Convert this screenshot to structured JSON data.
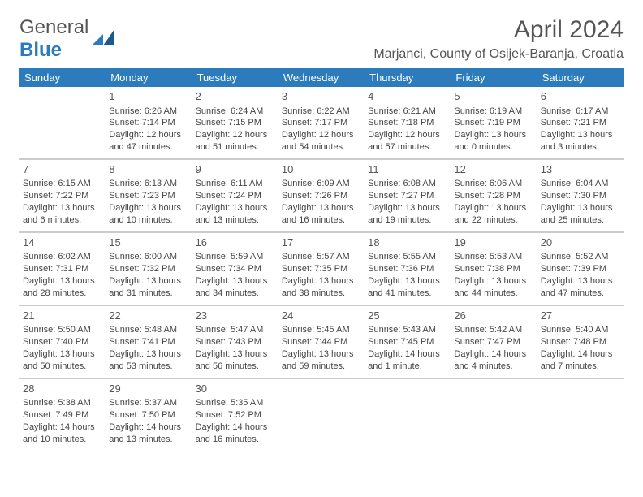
{
  "logo": {
    "text1": "General",
    "text2": "Blue"
  },
  "title": "April 2024",
  "location": "Marjanci, County of Osijek-Baranja, Croatia",
  "day_headers": [
    "Sunday",
    "Monday",
    "Tuesday",
    "Wednesday",
    "Thursday",
    "Friday",
    "Saturday"
  ],
  "header_bg": "#2b7bbd",
  "header_fg": "#ffffff",
  "border_color": "#cccccc",
  "weeks": [
    [
      null,
      {
        "n": "1",
        "sr": "Sunrise: 6:26 AM",
        "ss": "Sunset: 7:14 PM",
        "d1": "Daylight: 12 hours",
        "d2": "and 47 minutes."
      },
      {
        "n": "2",
        "sr": "Sunrise: 6:24 AM",
        "ss": "Sunset: 7:15 PM",
        "d1": "Daylight: 12 hours",
        "d2": "and 51 minutes."
      },
      {
        "n": "3",
        "sr": "Sunrise: 6:22 AM",
        "ss": "Sunset: 7:17 PM",
        "d1": "Daylight: 12 hours",
        "d2": "and 54 minutes."
      },
      {
        "n": "4",
        "sr": "Sunrise: 6:21 AM",
        "ss": "Sunset: 7:18 PM",
        "d1": "Daylight: 12 hours",
        "d2": "and 57 minutes."
      },
      {
        "n": "5",
        "sr": "Sunrise: 6:19 AM",
        "ss": "Sunset: 7:19 PM",
        "d1": "Daylight: 13 hours",
        "d2": "and 0 minutes."
      },
      {
        "n": "6",
        "sr": "Sunrise: 6:17 AM",
        "ss": "Sunset: 7:21 PM",
        "d1": "Daylight: 13 hours",
        "d2": "and 3 minutes."
      }
    ],
    [
      {
        "n": "7",
        "sr": "Sunrise: 6:15 AM",
        "ss": "Sunset: 7:22 PM",
        "d1": "Daylight: 13 hours",
        "d2": "and 6 minutes."
      },
      {
        "n": "8",
        "sr": "Sunrise: 6:13 AM",
        "ss": "Sunset: 7:23 PM",
        "d1": "Daylight: 13 hours",
        "d2": "and 10 minutes."
      },
      {
        "n": "9",
        "sr": "Sunrise: 6:11 AM",
        "ss": "Sunset: 7:24 PM",
        "d1": "Daylight: 13 hours",
        "d2": "and 13 minutes."
      },
      {
        "n": "10",
        "sr": "Sunrise: 6:09 AM",
        "ss": "Sunset: 7:26 PM",
        "d1": "Daylight: 13 hours",
        "d2": "and 16 minutes."
      },
      {
        "n": "11",
        "sr": "Sunrise: 6:08 AM",
        "ss": "Sunset: 7:27 PM",
        "d1": "Daylight: 13 hours",
        "d2": "and 19 minutes."
      },
      {
        "n": "12",
        "sr": "Sunrise: 6:06 AM",
        "ss": "Sunset: 7:28 PM",
        "d1": "Daylight: 13 hours",
        "d2": "and 22 minutes."
      },
      {
        "n": "13",
        "sr": "Sunrise: 6:04 AM",
        "ss": "Sunset: 7:30 PM",
        "d1": "Daylight: 13 hours",
        "d2": "and 25 minutes."
      }
    ],
    [
      {
        "n": "14",
        "sr": "Sunrise: 6:02 AM",
        "ss": "Sunset: 7:31 PM",
        "d1": "Daylight: 13 hours",
        "d2": "and 28 minutes."
      },
      {
        "n": "15",
        "sr": "Sunrise: 6:00 AM",
        "ss": "Sunset: 7:32 PM",
        "d1": "Daylight: 13 hours",
        "d2": "and 31 minutes."
      },
      {
        "n": "16",
        "sr": "Sunrise: 5:59 AM",
        "ss": "Sunset: 7:34 PM",
        "d1": "Daylight: 13 hours",
        "d2": "and 34 minutes."
      },
      {
        "n": "17",
        "sr": "Sunrise: 5:57 AM",
        "ss": "Sunset: 7:35 PM",
        "d1": "Daylight: 13 hours",
        "d2": "and 38 minutes."
      },
      {
        "n": "18",
        "sr": "Sunrise: 5:55 AM",
        "ss": "Sunset: 7:36 PM",
        "d1": "Daylight: 13 hours",
        "d2": "and 41 minutes."
      },
      {
        "n": "19",
        "sr": "Sunrise: 5:53 AM",
        "ss": "Sunset: 7:38 PM",
        "d1": "Daylight: 13 hours",
        "d2": "and 44 minutes."
      },
      {
        "n": "20",
        "sr": "Sunrise: 5:52 AM",
        "ss": "Sunset: 7:39 PM",
        "d1": "Daylight: 13 hours",
        "d2": "and 47 minutes."
      }
    ],
    [
      {
        "n": "21",
        "sr": "Sunrise: 5:50 AM",
        "ss": "Sunset: 7:40 PM",
        "d1": "Daylight: 13 hours",
        "d2": "and 50 minutes."
      },
      {
        "n": "22",
        "sr": "Sunrise: 5:48 AM",
        "ss": "Sunset: 7:41 PM",
        "d1": "Daylight: 13 hours",
        "d2": "and 53 minutes."
      },
      {
        "n": "23",
        "sr": "Sunrise: 5:47 AM",
        "ss": "Sunset: 7:43 PM",
        "d1": "Daylight: 13 hours",
        "d2": "and 56 minutes."
      },
      {
        "n": "24",
        "sr": "Sunrise: 5:45 AM",
        "ss": "Sunset: 7:44 PM",
        "d1": "Daylight: 13 hours",
        "d2": "and 59 minutes."
      },
      {
        "n": "25",
        "sr": "Sunrise: 5:43 AM",
        "ss": "Sunset: 7:45 PM",
        "d1": "Daylight: 14 hours",
        "d2": "and 1 minute."
      },
      {
        "n": "26",
        "sr": "Sunrise: 5:42 AM",
        "ss": "Sunset: 7:47 PM",
        "d1": "Daylight: 14 hours",
        "d2": "and 4 minutes."
      },
      {
        "n": "27",
        "sr": "Sunrise: 5:40 AM",
        "ss": "Sunset: 7:48 PM",
        "d1": "Daylight: 14 hours",
        "d2": "and 7 minutes."
      }
    ],
    [
      {
        "n": "28",
        "sr": "Sunrise: 5:38 AM",
        "ss": "Sunset: 7:49 PM",
        "d1": "Daylight: 14 hours",
        "d2": "and 10 minutes."
      },
      {
        "n": "29",
        "sr": "Sunrise: 5:37 AM",
        "ss": "Sunset: 7:50 PM",
        "d1": "Daylight: 14 hours",
        "d2": "and 13 minutes."
      },
      {
        "n": "30",
        "sr": "Sunrise: 5:35 AM",
        "ss": "Sunset: 7:52 PM",
        "d1": "Daylight: 14 hours",
        "d2": "and 16 minutes."
      },
      null,
      null,
      null,
      null
    ]
  ]
}
